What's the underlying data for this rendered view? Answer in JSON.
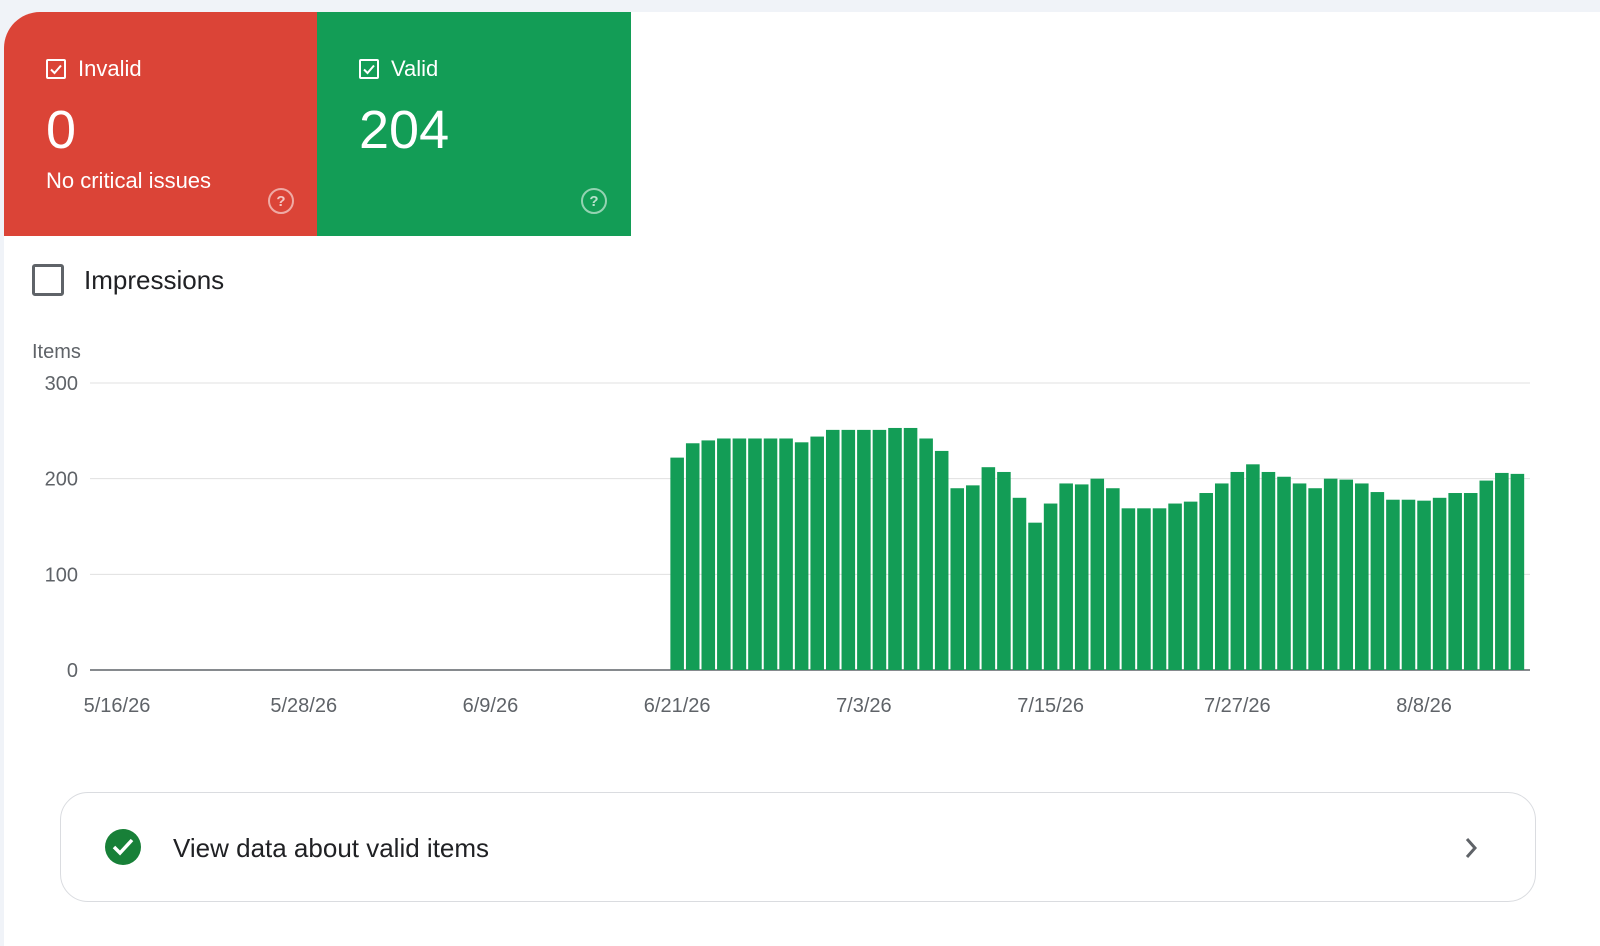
{
  "tiles": {
    "invalid": {
      "label": "Invalid",
      "count": "0",
      "subtitle": "No critical issues",
      "checked": true,
      "color": "#db4437"
    },
    "valid": {
      "label": "Valid",
      "count": "204",
      "checked": true,
      "color": "#139d56"
    }
  },
  "impressions": {
    "label": "Impressions",
    "checked": false
  },
  "chart_data": {
    "type": "bar",
    "ylabel": "Items",
    "ylim": [
      0,
      300
    ],
    "yticks": [
      "300",
      "200",
      "100",
      "0"
    ],
    "xticks": [
      "5/16/26",
      "5/28/26",
      "6/9/26",
      "6/21/26",
      "7/3/26",
      "7/15/26",
      "7/27/26",
      "8/8/26"
    ],
    "series": [
      {
        "color": "#139d56",
        "start_date": "6/21/26",
        "values": [
          222,
          237,
          240,
          242,
          242,
          242,
          242,
          242,
          238,
          244,
          251,
          251,
          251,
          251,
          253,
          253,
          242,
          229,
          190,
          193,
          212,
          207,
          180,
          154,
          174,
          195,
          194,
          200,
          190,
          169,
          169,
          169,
          174,
          176,
          185,
          195,
          207,
          215,
          207,
          202,
          195,
          190,
          200,
          199,
          195,
          186,
          178,
          178,
          177,
          180,
          185,
          185,
          198,
          206,
          205
        ]
      }
    ],
    "grid": true,
    "legend": "none"
  },
  "valid_link": {
    "label": "View data about valid items"
  }
}
